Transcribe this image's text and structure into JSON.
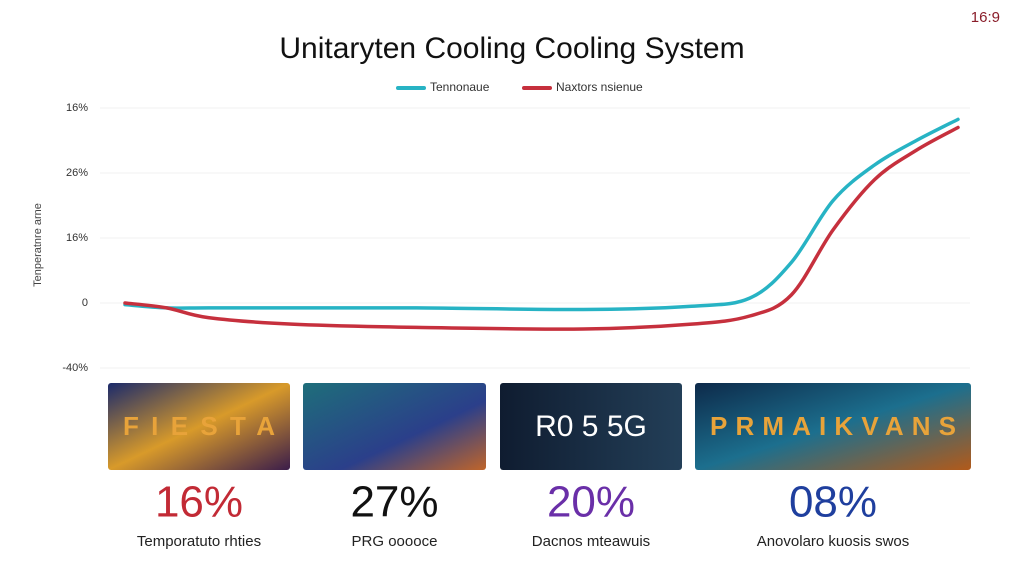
{
  "badge": "16:9",
  "chart_data": {
    "type": "line",
    "title": "Unitaryten Cooling Cooling System",
    "y_label": "Tenperatnre arne",
    "x": [
      0,
      5,
      10,
      20,
      35,
      55,
      68,
      75,
      80,
      85,
      90,
      95,
      100
    ],
    "xlim": [
      0,
      100
    ],
    "series": [
      {
        "name": "Tennonaue",
        "color": "#27b3c4",
        "values": [
          -1,
          -3,
          -3,
          -3,
          -3,
          -4,
          -2,
          3,
          25,
          63,
          85,
          100,
          113
        ]
      },
      {
        "name": "Naxtors nsienue",
        "color": "#c6303d",
        "values": [
          0,
          -3,
          -9,
          -13,
          -15,
          -16,
          -13,
          -8,
          5,
          45,
          76,
          94,
          108
        ]
      }
    ],
    "ylim": [
      -40,
      120
    ],
    "yticks": [
      {
        "value": -40,
        "label": "-40%"
      },
      0,
      {
        "value": 40,
        "label": "16%"
      },
      {
        "value": 80,
        "label": "26%"
      },
      {
        "value": 120,
        "label": "16%"
      }
    ],
    "grid": true
  },
  "cards": [
    {
      "image_text": "FIESTA",
      "percent": "16%",
      "color": "#c22a35",
      "caption": "Temporatuto rhties"
    },
    {
      "image_text": "",
      "percent": "27%",
      "color": "#111111",
      "caption": "PRG ooooce"
    },
    {
      "image_text": "R0 5 5G",
      "percent": "20%",
      "color": "#6a2fa8",
      "caption": "Dacnos mteawuis"
    },
    {
      "image_text": "PRMAIKVANS",
      "percent": "08%",
      "color": "#1f3f9e",
      "caption": "Anovolaro kuosis swos"
    }
  ]
}
